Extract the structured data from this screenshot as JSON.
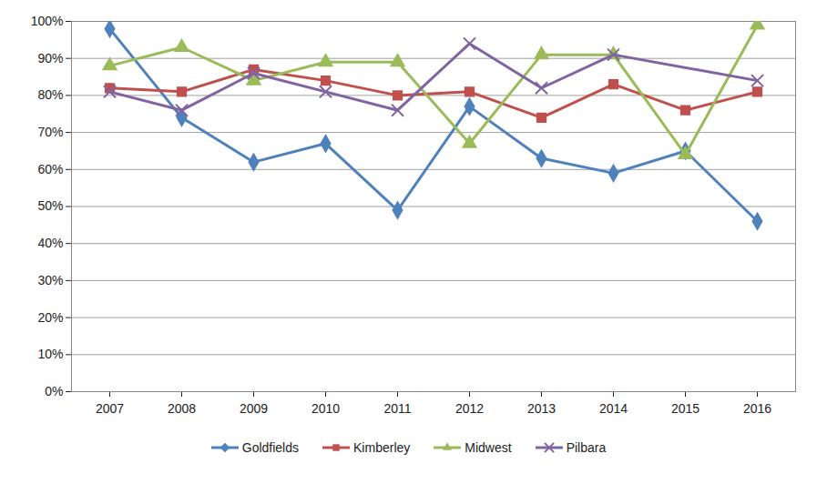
{
  "chart_data": {
    "type": "line",
    "categories": [
      "2007",
      "2008",
      "2009",
      "2010",
      "2011",
      "2012",
      "2013",
      "2014",
      "2015",
      "2016"
    ],
    "series": [
      {
        "name": "Goldfields",
        "color": "#4F81BD",
        "marker": "diamond",
        "values": [
          98,
          74,
          62,
          67,
          49,
          77,
          63,
          59,
          65,
          46
        ]
      },
      {
        "name": "Kimberley",
        "color": "#C0504D",
        "marker": "square",
        "values": [
          82,
          81,
          87,
          84,
          80,
          81,
          74,
          83,
          76,
          81
        ]
      },
      {
        "name": "Midwest",
        "color": "#9BBB59",
        "marker": "triangle",
        "values": [
          88,
          93,
          84,
          89,
          89,
          67,
          91,
          91,
          64,
          99
        ]
      },
      {
        "name": "Pilbara",
        "color": "#8064A2",
        "marker": "x",
        "values": [
          81,
          76,
          86,
          81,
          76,
          94,
          82,
          91,
          null,
          84
        ]
      }
    ],
    "ylim": [
      0,
      100
    ],
    "yticks": [
      {
        "value": 0,
        "label": "0%"
      },
      {
        "value": 10,
        "label": "10%"
      },
      {
        "value": 20,
        "label": "20%"
      },
      {
        "value": 30,
        "label": "30%"
      },
      {
        "value": 40,
        "label": "40%"
      },
      {
        "value": 50,
        "label": "50%"
      },
      {
        "value": 60,
        "label": "60%"
      },
      {
        "value": 70,
        "label": "70%"
      },
      {
        "value": 80,
        "label": "80%"
      },
      {
        "value": 90,
        "label": "90%"
      },
      {
        "value": 100,
        "label": "100%"
      }
    ],
    "grid": true,
    "legend": "bottom"
  }
}
